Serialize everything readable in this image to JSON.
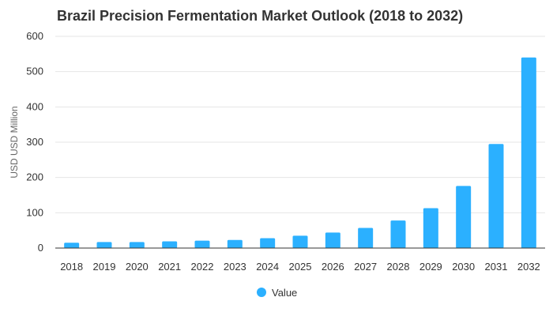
{
  "chart_data": {
    "type": "bar",
    "title": "Brazil Precision Fermentation Market Outlook (2018 to 2032)",
    "xlabel": "",
    "ylabel": "USD USD Million",
    "categories": [
      "2018",
      "2019",
      "2020",
      "2021",
      "2022",
      "2023",
      "2024",
      "2025",
      "2026",
      "2027",
      "2028",
      "2029",
      "2030",
      "2031",
      "2032"
    ],
    "series": [
      {
        "name": "Value",
        "values": [
          15,
          17,
          17,
          19,
          21,
          23,
          28,
          35,
          44,
          57,
          78,
          113,
          176,
          295,
          540
        ]
      }
    ],
    "ylim": [
      0,
      600
    ],
    "yticks": [
      0,
      100,
      200,
      300,
      400,
      500,
      600
    ],
    "grid": true,
    "legend_position": "bottom",
    "colors": {
      "bar": "#2bb0ff",
      "grid": "#e6e6e6",
      "text": "#333333"
    }
  }
}
